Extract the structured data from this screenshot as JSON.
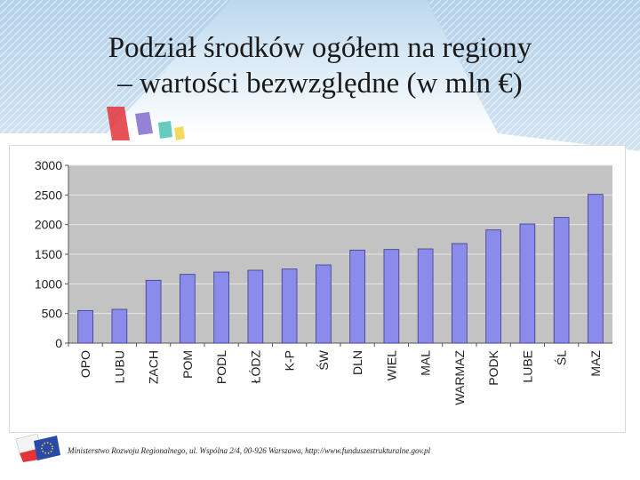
{
  "slide": {
    "title_line1": "Podział środków ogółem na regiony",
    "title_line2": "– wartości bezwzględne (w mln €)",
    "footer": "Ministerstwo Rozwoju Regionalnego, ul. Wspólna 2/4, 00-926 Warszawa, http://www.funduszestrukturalne.gov.pl"
  },
  "colors": {
    "bar": "#8b8bec",
    "bar_stroke": "#3a3a8c",
    "plot_bg": "#c3c3c3",
    "grid": "#e6e6e6"
  },
  "chart_data": {
    "type": "bar",
    "categories": [
      "OPO",
      "LUBU",
      "ZACH",
      "POM",
      "PODL",
      "ŁÓDZ",
      "K-P",
      "ŚW",
      "DLN",
      "WIEL",
      "MAL",
      "WARMAZ",
      "PODK",
      "LUBE",
      "ŚL",
      "MAZ"
    ],
    "values": [
      550,
      570,
      1060,
      1160,
      1200,
      1230,
      1250,
      1320,
      1570,
      1580,
      1590,
      1680,
      1910,
      2010,
      2120,
      2510
    ],
    "ylim": [
      0,
      3000
    ],
    "yticks": [
      0,
      500,
      1000,
      1500,
      2000,
      2500,
      3000
    ],
    "grid": true,
    "legend": "none"
  }
}
